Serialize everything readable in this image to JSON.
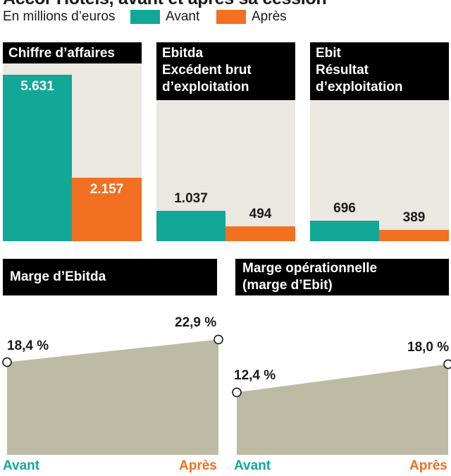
{
  "title": "Accor Hotels, avant et après sa cession",
  "subtitle": "En millions d’euros",
  "colors": {
    "avant": "#11a898",
    "apres": "#f36f21",
    "panel_bg": "#eae8e1",
    "area": "#bdbba4"
  },
  "legend": [
    {
      "label": "Avant",
      "color": "#11a898"
    },
    {
      "label": "Après",
      "color": "#f36f21"
    }
  ],
  "chart_data": [
    {
      "type": "bar",
      "title_lines": [
        "Chiffre d’affaires"
      ],
      "categories": [
        "Avant",
        "Après"
      ],
      "values": [
        5631,
        2157
      ],
      "value_labels": [
        "5.631",
        "2.157"
      ],
      "ylim": [
        0,
        6000
      ]
    },
    {
      "type": "bar",
      "title_lines": [
        "Ebitda",
        "Excédent brut",
        "d’exploitation"
      ],
      "categories": [
        "Avant",
        "Après"
      ],
      "values": [
        1037,
        494
      ],
      "value_labels": [
        "1.037",
        "494"
      ],
      "ylim": [
        0,
        6000
      ]
    },
    {
      "type": "bar",
      "title_lines": [
        "Ebit",
        "Résultat",
        "d’exploitation"
      ],
      "categories": [
        "Avant",
        "Après"
      ],
      "values": [
        696,
        389
      ],
      "value_labels": [
        "696",
        "389"
      ],
      "ylim": [
        0,
        6000
      ]
    },
    {
      "type": "area",
      "title_lines": [
        "Marge d’Ebitda"
      ],
      "categories": [
        "Avant",
        "Après"
      ],
      "values": [
        18.4,
        22.9
      ],
      "value_labels": [
        "18,4 %",
        "22,9 %"
      ],
      "ylim": [
        0,
        31.5
      ]
    },
    {
      "type": "area",
      "title_lines": [
        "Marge opérationnelle",
        "(marge d’Ebit)"
      ],
      "categories": [
        "Avant",
        "Après"
      ],
      "values": [
        12.4,
        18.0
      ],
      "value_labels": [
        "12,4 %",
        "18,0 %"
      ],
      "ylim": [
        0,
        31.5
      ]
    }
  ]
}
